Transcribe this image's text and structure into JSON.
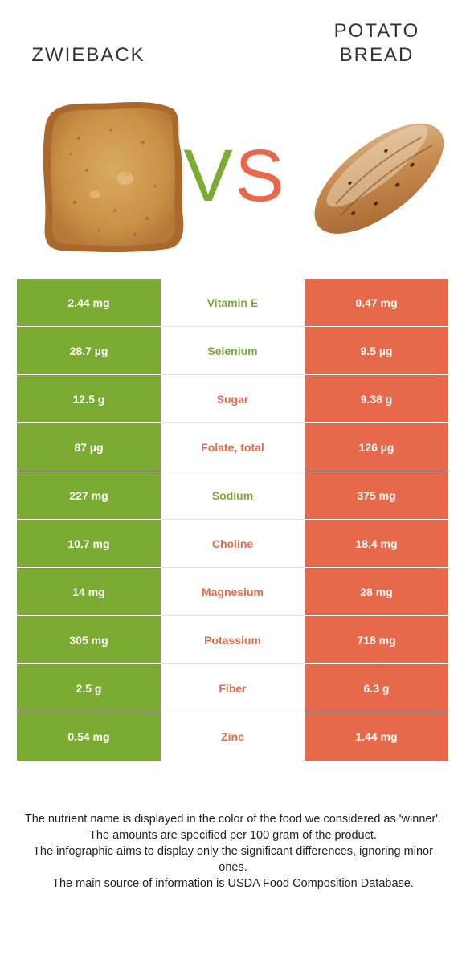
{
  "header": {
    "left_food": "ZWIEBACK",
    "right_food_line1": "POTATO",
    "right_food_line2": "BREAD",
    "vs_v": "V",
    "vs_s": "S"
  },
  "colors": {
    "left": "#7cab33",
    "right": "#e7694b"
  },
  "rows": [
    {
      "nutrient": "Vitamin E",
      "left": "2.44 mg",
      "right": "0.47 mg",
      "winner": "left"
    },
    {
      "nutrient": "Selenium",
      "left": "28.7 µg",
      "right": "9.5 µg",
      "winner": "left"
    },
    {
      "nutrient": "Sugar",
      "left": "12.5 g",
      "right": "9.38 g",
      "winner": "right"
    },
    {
      "nutrient": "Folate, total",
      "left": "87 µg",
      "right": "126 µg",
      "winner": "right"
    },
    {
      "nutrient": "Sodium",
      "left": "227 mg",
      "right": "375 mg",
      "winner": "left"
    },
    {
      "nutrient": "Choline",
      "left": "10.7 mg",
      "right": "18.4 mg",
      "winner": "right"
    },
    {
      "nutrient": "Magnesium",
      "left": "14 mg",
      "right": "28 mg",
      "winner": "right"
    },
    {
      "nutrient": "Potassium",
      "left": "305 mg",
      "right": "718 mg",
      "winner": "right"
    },
    {
      "nutrient": "Fiber",
      "left": "2.5 g",
      "right": "6.3 g",
      "winner": "right"
    },
    {
      "nutrient": "Zinc",
      "left": "0.54 mg",
      "right": "1.44 mg",
      "winner": "right"
    }
  ],
  "footer": {
    "line1": "The nutrient name is displayed in the color of the food we considered as 'winner'.",
    "line2": "The amounts are specified per 100 gram of the product.",
    "line3": "The infographic aims to display only the significant differences, ignoring minor ones.",
    "line4": "The main source of information is USDA Food Composition Database."
  }
}
